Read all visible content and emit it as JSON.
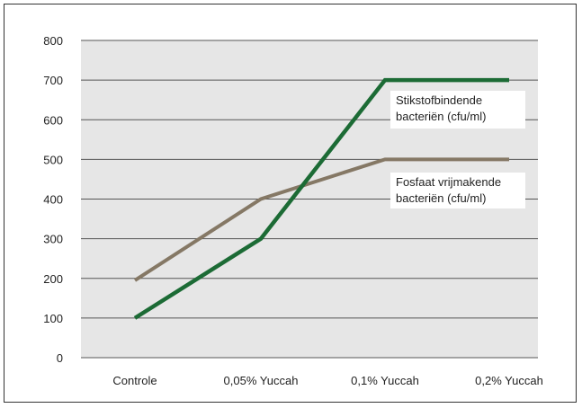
{
  "chart_data": {
    "type": "line",
    "categories": [
      "Controle",
      "0,05% Yuccah",
      "0,1% Yuccah",
      "0,2% Yuccah"
    ],
    "yticks": [
      0,
      100,
      200,
      300,
      400,
      500,
      600,
      700,
      800
    ],
    "ylim": [
      0,
      800
    ],
    "grid": true,
    "plot_background": "#e6e6e6",
    "series": [
      {
        "name": "Fosfaat vrijmakende bacteriën (cfu/ml)",
        "label_lines": [
          "Fosfaat vrijmakende",
          "bacteriën (cfu/ml)"
        ],
        "color": "#857865",
        "values": [
          195,
          400,
          500,
          500
        ]
      },
      {
        "name": "Stikstofbindende bacteriën (cfu/ml)",
        "label_lines": [
          "Stikstofbindende",
          "bacteriën (cfu/ml)"
        ],
        "color": "#1c6b35",
        "values": [
          100,
          300,
          700,
          700
        ]
      }
    ]
  }
}
